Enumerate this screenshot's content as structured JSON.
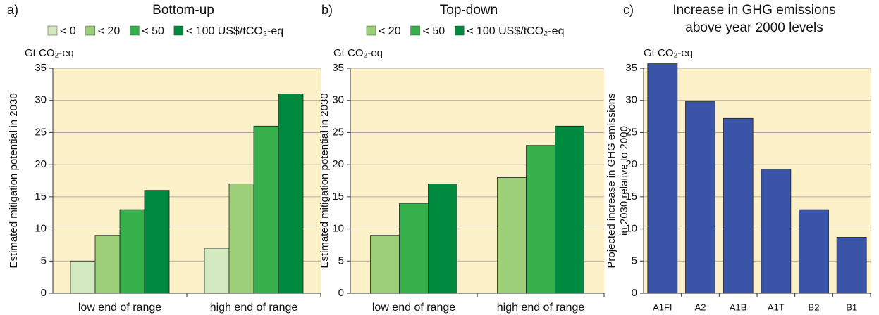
{
  "chart_data": [
    {
      "type": "bar",
      "panel_label": "a)",
      "title": "Bottom-up",
      "unit_label": "Gt CO₂-eq",
      "ylabel": "Estimated mitigation potential in 2030",
      "categories": [
        "low end of range",
        "high end of range"
      ],
      "series": [
        {
          "name": "< 0",
          "color": "#d3e9bf",
          "values": [
            5,
            7
          ]
        },
        {
          "name": "< 20",
          "color": "#9ccf78",
          "values": [
            9,
            17
          ]
        },
        {
          "name": "< 50",
          "color": "#36b04b",
          "values": [
            13,
            26
          ]
        },
        {
          "name": "< 100 US$/tCO₂-eq",
          "color": "#008a3f",
          "values": [
            16,
            31
          ]
        }
      ],
      "ylim": [
        0,
        35
      ],
      "yticks": [
        0,
        5,
        10,
        15,
        20,
        25,
        30,
        35
      ],
      "grid": true,
      "legend": "top"
    },
    {
      "type": "bar",
      "panel_label": "b)",
      "title": "Top-down",
      "unit_label": "Gt CO₂-eq",
      "ylabel": "Estimated mitigation potential in 2030",
      "categories": [
        "low end of range",
        "high end of range"
      ],
      "series": [
        {
          "name": "< 20",
          "color": "#9ccf78",
          "values": [
            9,
            18
          ]
        },
        {
          "name": "< 50",
          "color": "#36b04b",
          "values": [
            14,
            23
          ]
        },
        {
          "name": "< 100 US$/tCO₂-eq",
          "color": "#008a3f",
          "values": [
            17,
            26
          ]
        }
      ],
      "ylim": [
        0,
        35
      ],
      "yticks": [
        0,
        5,
        10,
        15,
        20,
        25,
        30,
        35
      ],
      "grid": true,
      "legend": "top"
    },
    {
      "type": "bar",
      "panel_label": "c)",
      "title": [
        "Increase in GHG emissions",
        "above year 2000 levels"
      ],
      "unit_label": "Gt CO₂-eq",
      "ylabel": [
        "Projected increase in GHG emissions",
        "in 2030 relative to 2000"
      ],
      "categories": [
        "A1FI",
        "A2",
        "A1B",
        "A1T",
        "B2",
        "B1"
      ],
      "values": [
        35.7,
        29.8,
        27.2,
        19.3,
        13,
        8.7
      ],
      "color": "#3a55a8",
      "ylim": [
        0,
        35
      ],
      "yticks": [
        0,
        5,
        10,
        15,
        20,
        25,
        30,
        35
      ],
      "grid": true
    }
  ]
}
